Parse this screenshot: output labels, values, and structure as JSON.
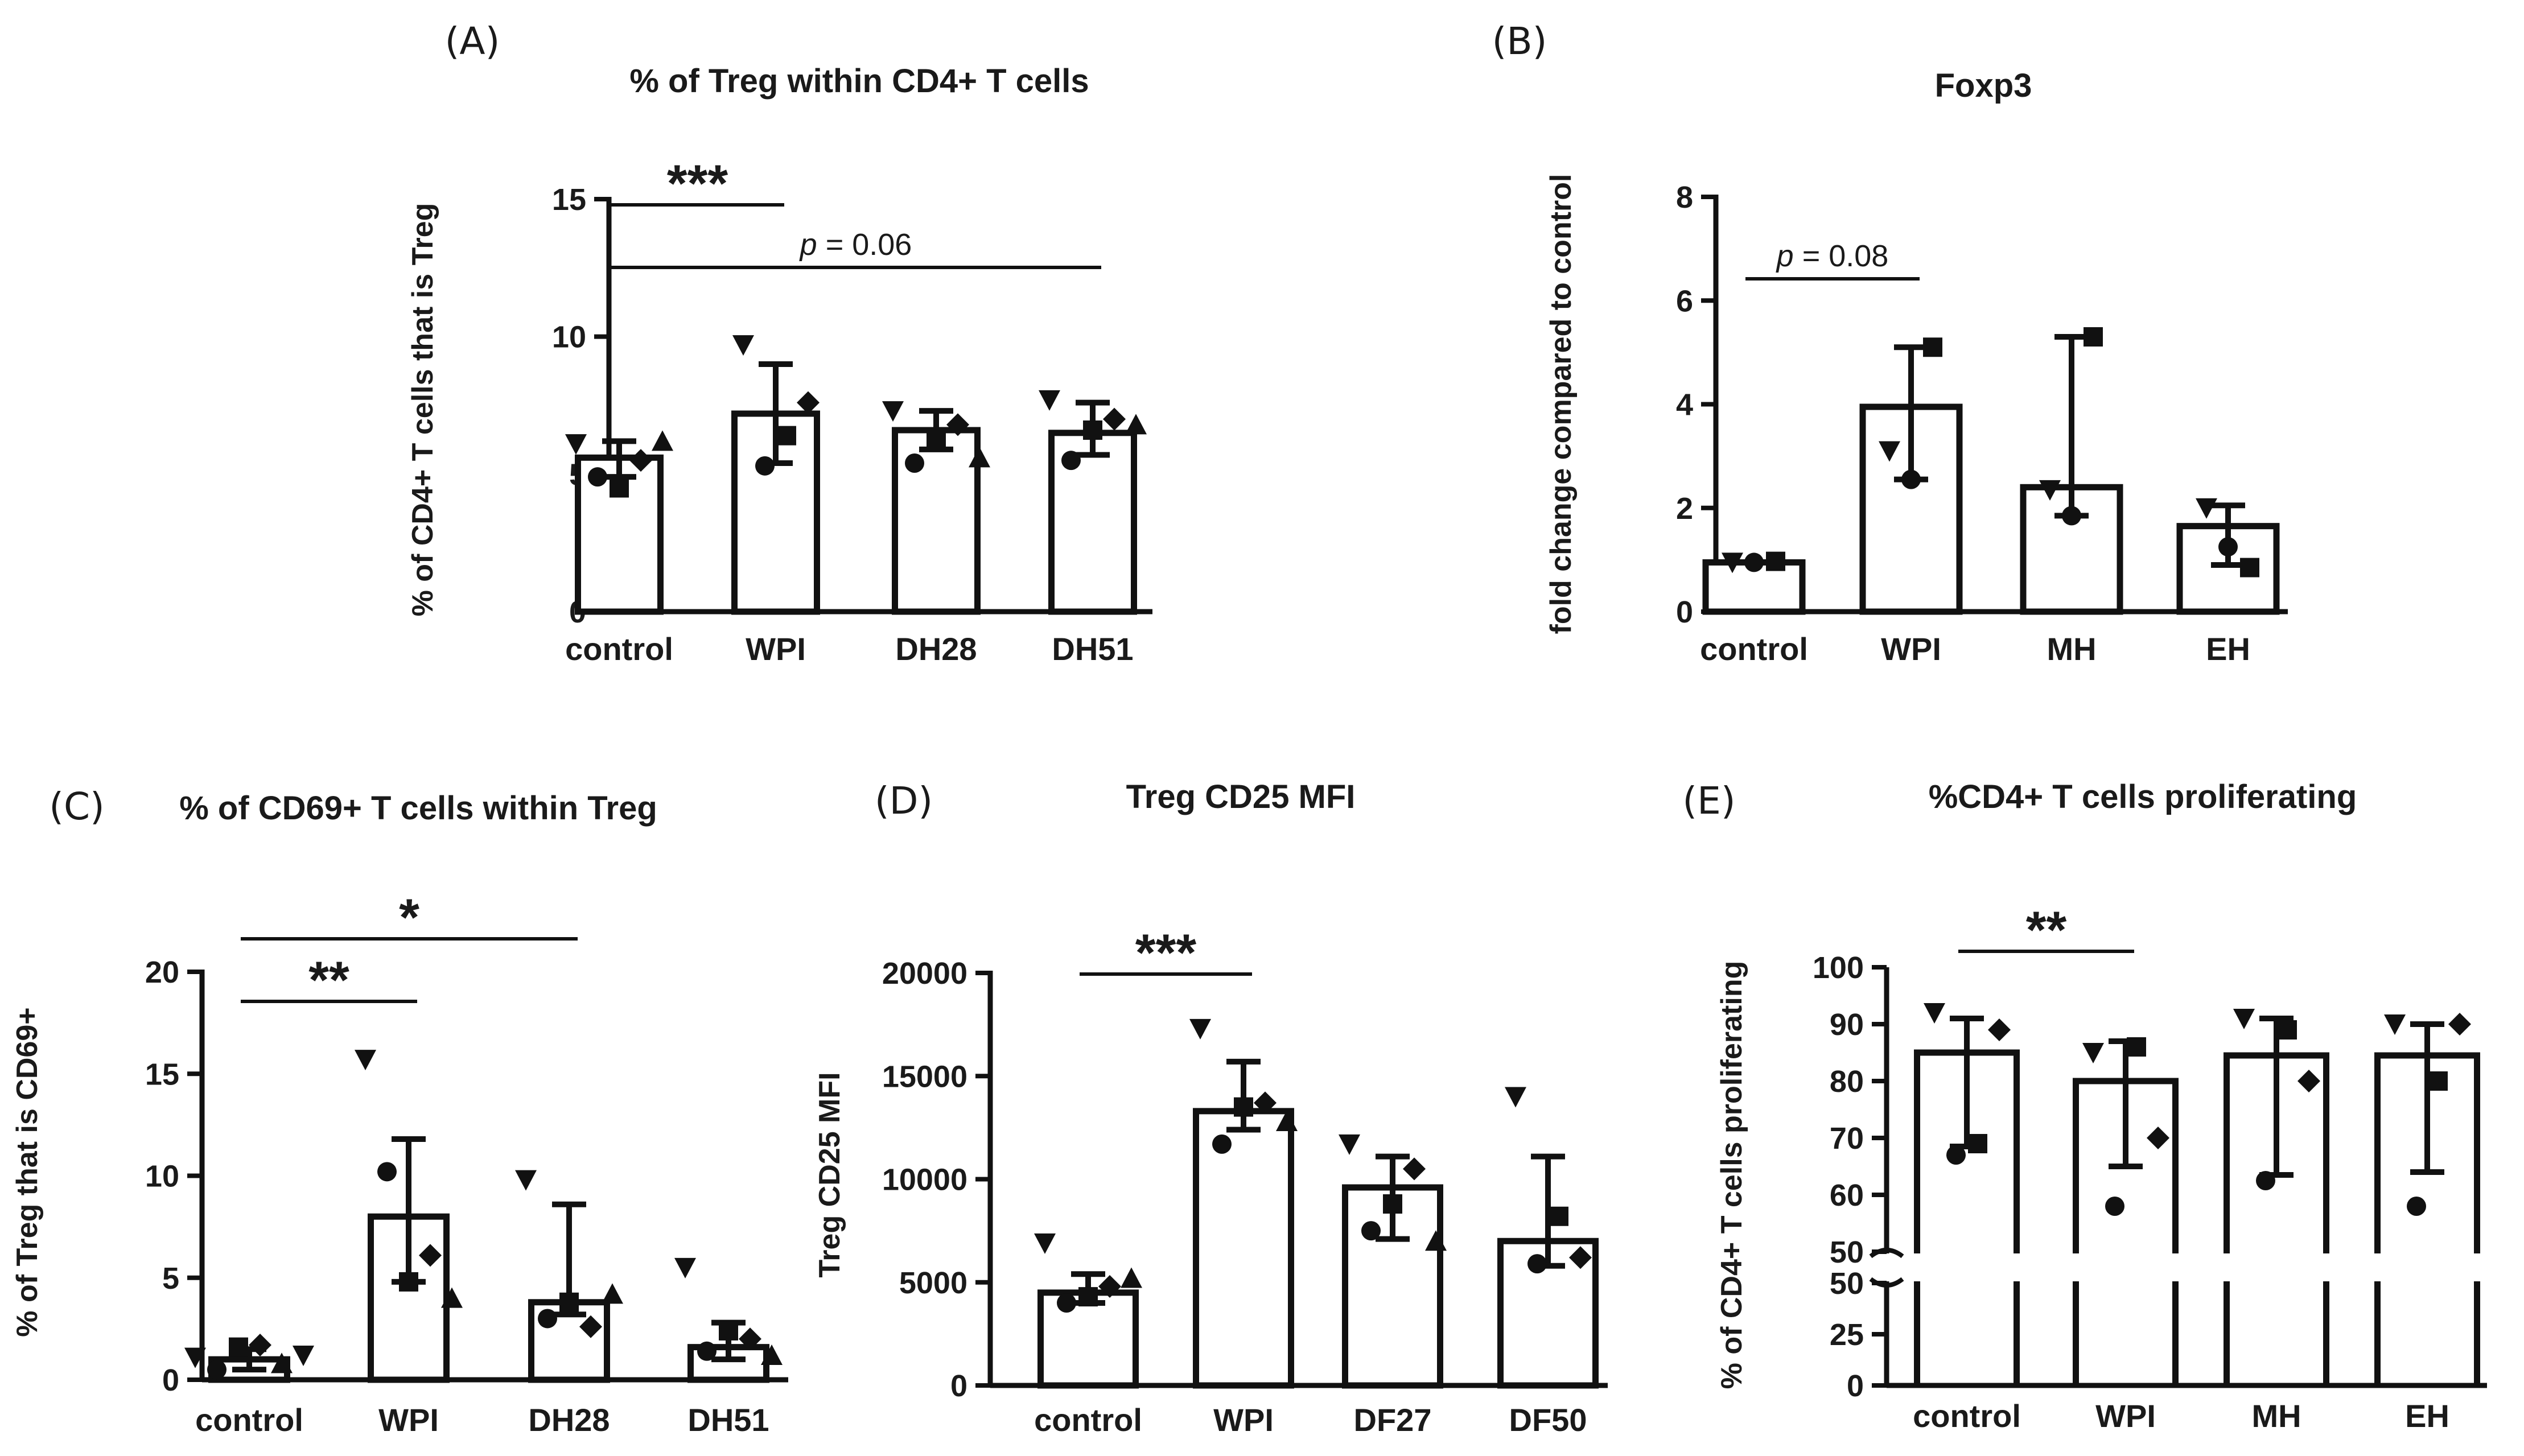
{
  "chart_data": [
    {
      "id": "A",
      "type": "bar",
      "panel_label": "(A)",
      "title": "% of Treg within CD4+ T cells",
      "ylabel": "% of CD4+ T cells that is Treg",
      "categories": [
        "control",
        "WPI",
        "DH28",
        "DH51"
      ],
      "values": [
        5.6,
        7.2,
        6.6,
        6.5
      ],
      "errors": [
        [
          4.9,
          6.2
        ],
        [
          5.4,
          9.0
        ],
        [
          5.9,
          7.3
        ],
        [
          5.7,
          7.6
        ]
      ],
      "points": [
        [
          6.1,
          4.9,
          4.5,
          5.5,
          6.2
        ],
        [
          9.7,
          5.3,
          6.4,
          7.6
        ],
        [
          7.3,
          5.4,
          6.3,
          6.8,
          5.6
        ],
        [
          7.7,
          5.5,
          6.6,
          7.0,
          6.8
        ]
      ],
      "ylim": [
        0,
        15
      ],
      "yticks": [
        "0",
        "5",
        "10",
        "15"
      ],
      "annotations": [
        {
          "from": 0,
          "to": 1,
          "y": 14.8,
          "text": "***",
          "style": "stars"
        },
        {
          "from": 0,
          "to": 3,
          "y": 12.5,
          "text": "= 0.06",
          "prefix": "p",
          "style": "pvalue"
        }
      ]
    },
    {
      "id": "B",
      "type": "bar",
      "panel_label": "(B)",
      "title": "Foxp3",
      "ylabel": "fold change compared to control",
      "categories": [
        "control",
        "WPI",
        "MH",
        "EH"
      ],
      "values": [
        0.95,
        3.95,
        2.4,
        1.65
      ],
      "errors": [
        [
          0.95,
          0.95
        ],
        [
          2.55,
          5.1
        ],
        [
          1.85,
          5.3
        ],
        [
          0.9,
          2.05
        ]
      ],
      "points": [
        [
          0.95,
          0.95,
          0.97
        ],
        [
          3.1,
          2.55,
          5.1
        ],
        [
          2.35,
          1.85,
          5.3
        ],
        [
          2.0,
          1.25,
          0.85
        ]
      ],
      "ylim": [
        0,
        8
      ],
      "yticks": [
        "0",
        "2",
        "4",
        "6",
        "8"
      ],
      "annotations": [
        {
          "from": 0,
          "to": 1,
          "y": 6.35,
          "text": "= 0.08",
          "prefix": "p",
          "style": "pvalue"
        }
      ]
    },
    {
      "id": "C",
      "type": "bar",
      "panel_label": "(C)",
      "title": "% of CD69+ T cells within Treg",
      "ylabel": "% of Treg  that is CD69+",
      "categories": [
        "control",
        "WPI",
        "DH28",
        "DH51"
      ],
      "values": [
        1.0,
        8.0,
        3.8,
        1.6
      ],
      "errors": [
        [
          0.5,
          1.5
        ],
        [
          4.8,
          11.8
        ],
        [
          3.2,
          8.6
        ],
        [
          1.0,
          2.8
        ]
      ],
      "points": [
        [
          1.1,
          0.5,
          1.6,
          1.7,
          0.8,
          1.2
        ],
        [
          15.7,
          10.2,
          4.8,
          6.1,
          4.0
        ],
        [
          9.8,
          3.0,
          3.8,
          2.6,
          4.2
        ],
        [
          5.5,
          1.4,
          2.4,
          2.0,
          1.2
        ]
      ],
      "ylim": [
        0,
        20
      ],
      "yticks": [
        "0",
        "5",
        "10",
        "15",
        "20"
      ],
      "annotations": [
        {
          "from": 0,
          "to": 2,
          "y": 22.8,
          "text": "*",
          "style": "stars"
        },
        {
          "from": 0,
          "to": 1,
          "y": 18.8,
          "text": "**",
          "style": "stars"
        }
      ]
    },
    {
      "id": "D",
      "type": "bar",
      "panel_label": "(D)",
      "title": "Treg CD25 MFI",
      "ylabel": "Treg CD25 MFI",
      "categories": [
        "control",
        "WPI",
        "DF27",
        "DF50"
      ],
      "values": [
        4500,
        13300,
        9600,
        7000
      ],
      "errors": [
        [
          4000,
          5400
        ],
        [
          12400,
          15700
        ],
        [
          7100,
          11100
        ],
        [
          5800,
          11100
        ]
      ],
      "points": [
        [
          6900,
          4000,
          4300,
          4800,
          5200
        ],
        [
          17300,
          11700,
          13500,
          13700,
          12800
        ],
        [
          11700,
          7500,
          8800,
          10500,
          7000
        ],
        [
          14000,
          5900,
          8200,
          6200
        ]
      ],
      "ylim": [
        0,
        20000
      ],
      "yticks": [
        "0",
        "5000",
        "10000",
        "15000",
        "20000"
      ],
      "annotations": [
        {
          "from": 0,
          "to": 1,
          "y": 20000,
          "text": "***",
          "style": "stars"
        }
      ]
    },
    {
      "id": "E",
      "type": "bar",
      "panel_label": "(E)",
      "title": "%CD4+ T cells proliferating",
      "ylabel": "% of CD4+ T cells proliferating",
      "categories": [
        "control",
        "WPI",
        "MH",
        "EH"
      ],
      "values": [
        85,
        80,
        84.5,
        84.5
      ],
      "errors": [
        [
          68.5,
          91
        ],
        [
          65,
          87
        ],
        [
          63.5,
          91
        ],
        [
          64,
          90
        ]
      ],
      "points": [
        [
          92,
          67,
          69,
          89
        ],
        [
          85,
          58,
          86,
          70
        ],
        [
          91,
          62.5,
          89,
          80
        ],
        [
          90,
          58,
          80,
          90
        ]
      ],
      "ylim": [
        0,
        100
      ],
      "axis_break": {
        "lower": [
          0,
          50
        ],
        "upper": [
          50,
          100
        ]
      },
      "yticks": [
        "0",
        "25",
        "50",
        "50",
        "60",
        "70",
        "80",
        "90",
        "100"
      ],
      "annotations": [
        {
          "from": 0,
          "to": 1,
          "y": 105,
          "text": "**",
          "style": "stars"
        }
      ]
    }
  ]
}
